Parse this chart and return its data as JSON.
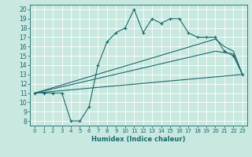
{
  "title": "",
  "xlabel": "Humidex (Indice chaleur)",
  "xlim": [
    -0.5,
    23.5
  ],
  "ylim": [
    7.5,
    20.5
  ],
  "xticks": [
    0,
    1,
    2,
    3,
    4,
    5,
    6,
    7,
    8,
    9,
    10,
    11,
    12,
    13,
    14,
    15,
    16,
    17,
    18,
    19,
    20,
    21,
    22,
    23
  ],
  "yticks": [
    8,
    9,
    10,
    11,
    12,
    13,
    14,
    15,
    16,
    17,
    18,
    19,
    20
  ],
  "bg_color": "#c8e8e0",
  "line_color": "#1a6b6b",
  "grid_color": "#b0d8d0",
  "line1_x": [
    0,
    1,
    2,
    3,
    4,
    5,
    6,
    7,
    8,
    9,
    10,
    11,
    12,
    13,
    14,
    15,
    16,
    17,
    18,
    19,
    20,
    21,
    22,
    23
  ],
  "line1_y": [
    11,
    11,
    11,
    11,
    8,
    8,
    9.5,
    14,
    16.5,
    17.5,
    18,
    20,
    17.5,
    19,
    18.5,
    19,
    19,
    17.5,
    17,
    17,
    17,
    15.5,
    15,
    13
  ],
  "line2_x": [
    0,
    23
  ],
  "line2_y": [
    11,
    13
  ],
  "line3_x": [
    0,
    20,
    22,
    23
  ],
  "line3_y": [
    11,
    15.5,
    15.2,
    13
  ],
  "line4_x": [
    0,
    20,
    21,
    22,
    23
  ],
  "line4_y": [
    11,
    16.8,
    16.0,
    15.5,
    13
  ]
}
